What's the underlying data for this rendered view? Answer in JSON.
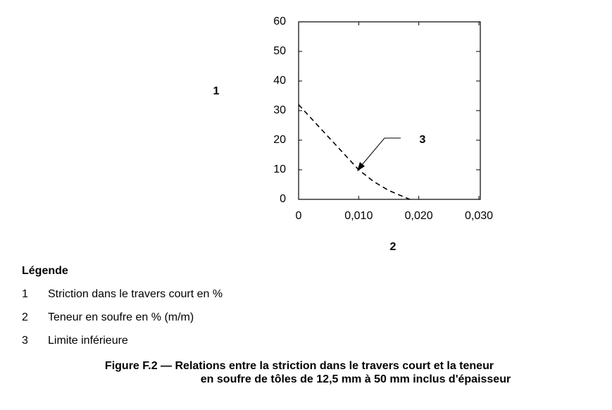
{
  "chart_data": {
    "type": "line",
    "x_label": "2",
    "y_label": "1",
    "annotation": "3",
    "x": [
      0,
      0.0025,
      0.005,
      0.0075,
      0.01,
      0.0125,
      0.015,
      0.0185
    ],
    "series": [
      {
        "color": "#000000",
        "values": [
          32,
          26.5,
          21,
          15.5,
          10,
          6,
          3,
          0
        ]
      }
    ],
    "xlim": [
      0,
      0.03
    ],
    "ylim": [
      0,
      60
    ],
    "xticks": [
      0,
      {
        "value": 0.01,
        "label": "0,010"
      },
      {
        "value": 0.02,
        "label": "0,020"
      },
      {
        "value": 0.03,
        "label": "0,030"
      }
    ],
    "yticks": [
      0,
      10,
      20,
      30,
      40,
      50,
      60
    ]
  },
  "legend": {
    "title": "Légende",
    "items": [
      {
        "key": "1",
        "text": "Striction dans le travers court en %"
      },
      {
        "key": "2",
        "text": "Teneur en soufre en % (m/m)"
      },
      {
        "key": "3",
        "text": "Limite inférieure"
      }
    ]
  },
  "caption": [
    "Figure F.2 — Relations entre la striction dans le travers court et la teneur",
    "en soufre de tôles de 12,5 mm à 50 mm inclus d'épaisseur"
  ]
}
